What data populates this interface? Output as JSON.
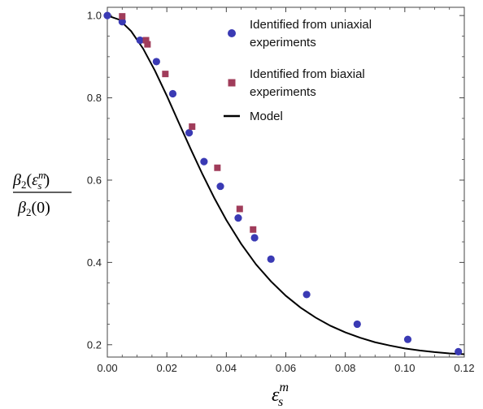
{
  "chart_data": {
    "type": "scatter",
    "title": "",
    "xlabel": "ε_s^m",
    "ylabel": "β2(ε_s^m) / β2(0)",
    "xlim": [
      0,
      0.12
    ],
    "ylim": [
      0.17,
      1.02
    ],
    "x_ticks": [
      "0.00",
      "0.02",
      "0.04",
      "0.06",
      "0.08",
      "0.10",
      "0.12"
    ],
    "y_ticks": [
      "0.2",
      "0.4",
      "0.6",
      "0.8",
      "1.0"
    ],
    "grid": false,
    "legend_position": "top-right",
    "series": [
      {
        "name": "Identified from uniaxial experiments",
        "legend_lines": [
          "Identified from uniaxial",
          "experiments"
        ],
        "marker": "circle",
        "color": "#3a3ab4",
        "x": [
          0.0,
          0.005,
          0.011,
          0.0165,
          0.022,
          0.0275,
          0.0325,
          0.038,
          0.044,
          0.0495,
          0.055,
          0.067,
          0.084,
          0.101,
          0.118
        ],
        "y": [
          1.0,
          0.985,
          0.94,
          0.888,
          0.81,
          0.715,
          0.645,
          0.585,
          0.508,
          0.46,
          0.408,
          0.322,
          0.25,
          0.213,
          0.183
        ]
      },
      {
        "name": "Identified from biaxial experiments",
        "legend_lines": [
          "Identified from biaxial",
          "experiments"
        ],
        "marker": "square",
        "color": "#a03c5a",
        "x": [
          0.005,
          0.013,
          0.0135,
          0.0195,
          0.0285,
          0.037,
          0.0445,
          0.049
        ],
        "y": [
          0.998,
          0.94,
          0.93,
          0.858,
          0.73,
          0.63,
          0.53,
          0.48
        ]
      },
      {
        "name": "Model",
        "legend_lines": [
          "Model"
        ],
        "marker": "line",
        "color": "#000000",
        "x": [
          0.0,
          0.004,
          0.008,
          0.012,
          0.016,
          0.02,
          0.024,
          0.028,
          0.032,
          0.036,
          0.04,
          0.045,
          0.05,
          0.055,
          0.06,
          0.065,
          0.07,
          0.075,
          0.08,
          0.085,
          0.09,
          0.095,
          0.1,
          0.105,
          0.11,
          0.115,
          0.12
        ],
        "y": [
          1.0,
          0.99,
          0.962,
          0.92,
          0.866,
          0.805,
          0.74,
          0.676,
          0.614,
          0.556,
          0.503,
          0.445,
          0.395,
          0.354,
          0.319,
          0.29,
          0.266,
          0.246,
          0.23,
          0.217,
          0.206,
          0.198,
          0.191,
          0.186,
          0.182,
          0.179,
          0.177
        ]
      }
    ]
  }
}
